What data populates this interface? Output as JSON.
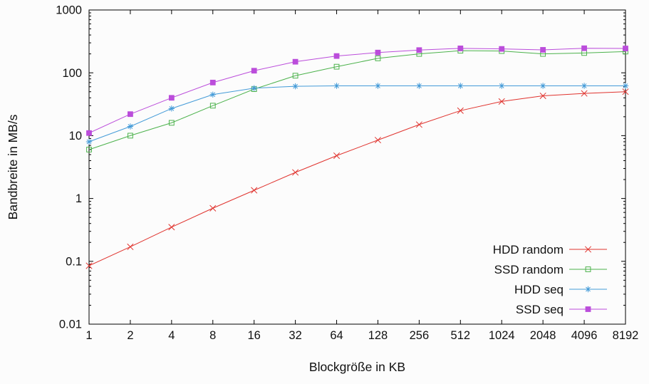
{
  "chart_data": {
    "type": "line",
    "title": "",
    "xlabel": "Blockgröße in KB",
    "ylabel": "Bandbreite in MB/s",
    "x_scale": "log2",
    "y_scale": "log10",
    "xlim": [
      1,
      8192
    ],
    "ylim": [
      0.01,
      1000
    ],
    "grid": false,
    "legend_position": "inside-bottom-right",
    "x_ticks": [
      1,
      2,
      4,
      8,
      16,
      32,
      64,
      128,
      256,
      512,
      1024,
      2048,
      4096,
      8192
    ],
    "x_tick_labels": [
      "1",
      "2",
      "4",
      "8",
      "16",
      "32",
      "64",
      "128",
      "256",
      "512",
      "1024",
      "2048",
      "4096",
      "8192"
    ],
    "y_ticks": [
      0.01,
      0.1,
      1,
      10,
      100,
      1000
    ],
    "y_tick_labels": [
      "0.01",
      "0.1",
      "1",
      "10",
      "100",
      "1000"
    ],
    "x": [
      1,
      2,
      4,
      8,
      16,
      32,
      64,
      128,
      256,
      512,
      1024,
      2048,
      4096,
      8192
    ],
    "series": [
      {
        "name": "HDD random",
        "color": "#e0332e",
        "marker": "x",
        "values": [
          0.085,
          0.17,
          0.35,
          0.7,
          1.35,
          2.6,
          4.8,
          8.5,
          15,
          25,
          35,
          43,
          47,
          50
        ]
      },
      {
        "name": "SSD random",
        "color": "#4cb24c",
        "marker": "open-square",
        "values": [
          6,
          10,
          16,
          30,
          55,
          90,
          125,
          170,
          200,
          225,
          222,
          200,
          207,
          218
        ]
      },
      {
        "name": "HDD seq",
        "color": "#449bd8",
        "marker": "asterisk",
        "values": [
          8,
          14,
          27,
          45,
          57,
          61,
          62,
          62,
          62,
          62,
          62,
          62,
          62,
          62
        ]
      },
      {
        "name": "SSD seq",
        "color": "#bb4ddb",
        "marker": "filled-square",
        "values": [
          11,
          22,
          40,
          70,
          108,
          150,
          185,
          210,
          230,
          245,
          240,
          232,
          246,
          244
        ]
      }
    ],
    "colors": {
      "axis": "#000000",
      "text": "#111111",
      "background": "#fcfcfc"
    }
  }
}
